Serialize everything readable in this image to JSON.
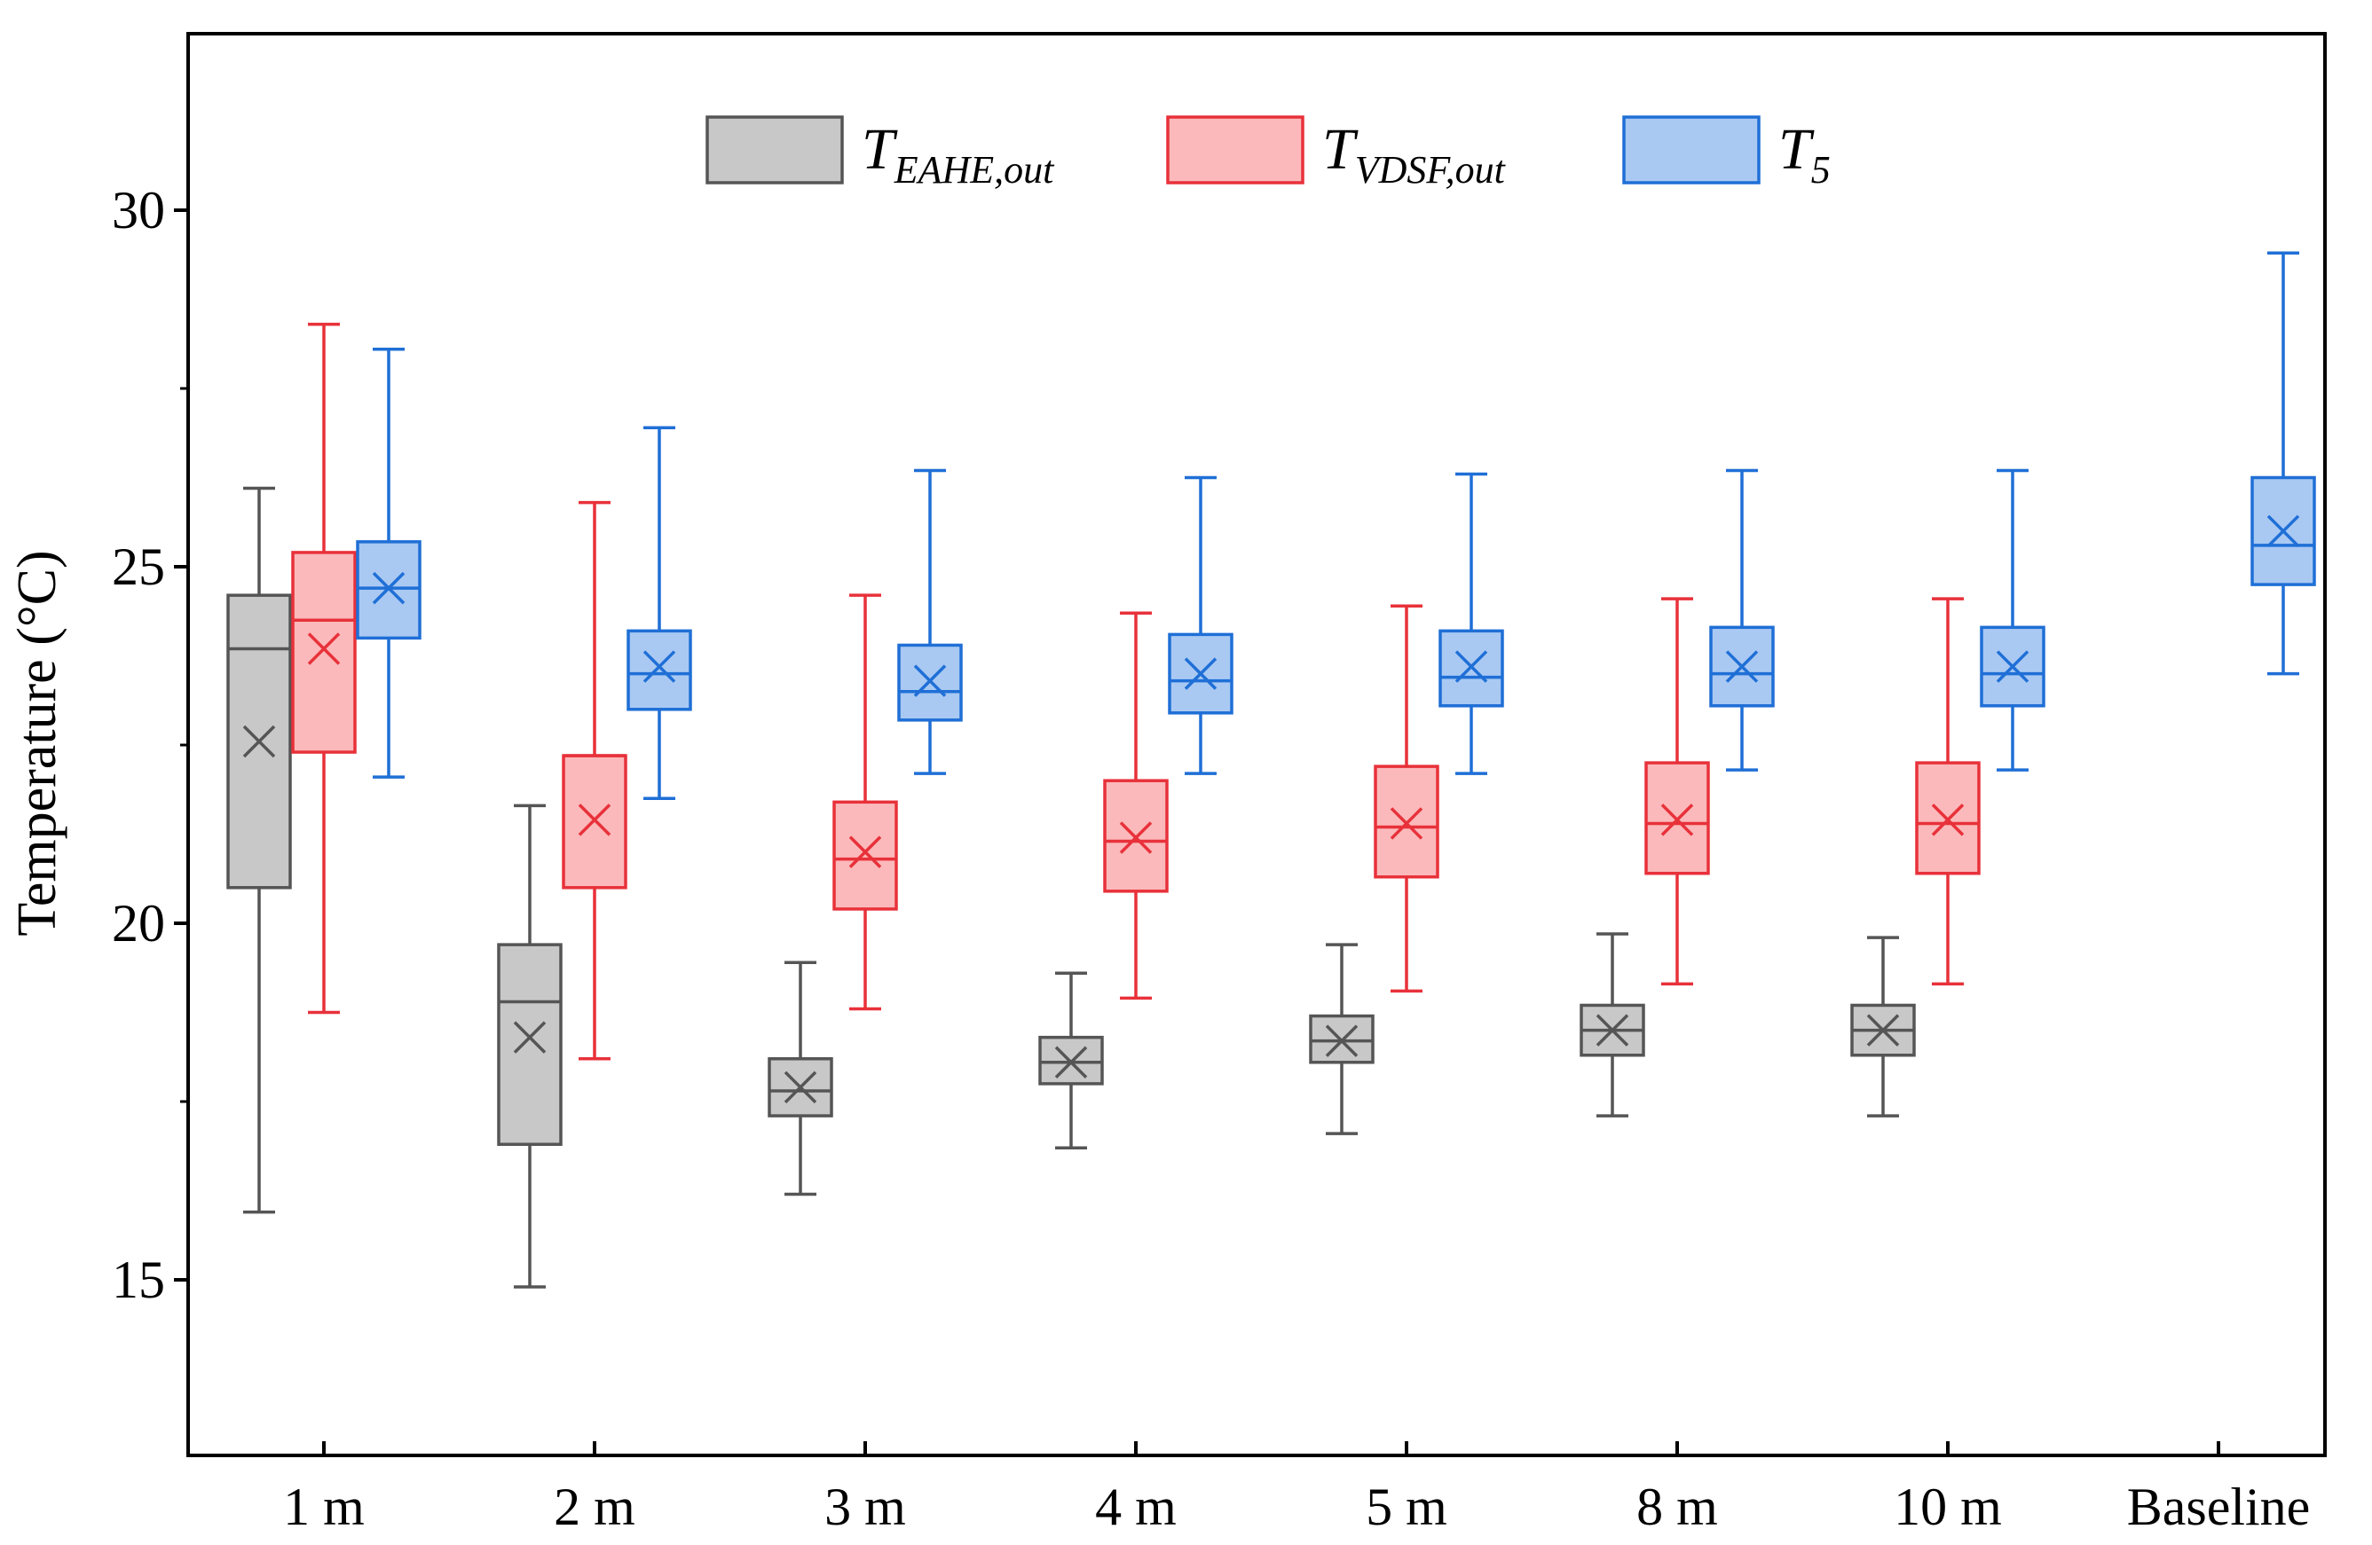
{
  "chart_data": {
    "type": "box",
    "title": "",
    "xlabel": "",
    "ylabel": "Temperature (°C)",
    "ylim": [
      12.5,
      32.5
    ],
    "yticks": [
      15,
      20,
      25,
      30
    ],
    "grid": false,
    "legend_position": "top-center",
    "categories": [
      "1 m",
      "2 m",
      "3 m",
      "4 m",
      "5 m",
      "8 m",
      "10 m",
      "Baseline"
    ],
    "series": [
      {
        "key": "eahe",
        "name_main": "T",
        "name_sub": "EAHE,out",
        "color": "#555555",
        "fill": "#c8c8c8",
        "boxes": [
          {
            "category": "1 m",
            "min": 15.95,
            "q1": 20.5,
            "median": 23.85,
            "mean": 22.55,
            "q3": 24.6,
            "max": 26.1
          },
          {
            "category": "2 m",
            "min": 14.9,
            "q1": 16.9,
            "median": 18.9,
            "mean": 18.4,
            "q3": 19.7,
            "max": 21.65
          },
          {
            "category": "3 m",
            "min": 16.2,
            "q1": 17.3,
            "median": 17.65,
            "mean": 17.7,
            "q3": 18.1,
            "max": 19.45
          },
          {
            "category": "4 m",
            "min": 16.85,
            "q1": 17.75,
            "median": 18.05,
            "mean": 18.05,
            "q3": 18.4,
            "max": 19.3
          },
          {
            "category": "5 m",
            "min": 17.05,
            "q1": 18.05,
            "median": 18.35,
            "mean": 18.35,
            "q3": 18.7,
            "max": 19.7
          },
          {
            "category": "8 m",
            "min": 17.3,
            "q1": 18.15,
            "median": 18.5,
            "mean": 18.5,
            "q3": 18.85,
            "max": 19.85
          },
          {
            "category": "10 m",
            "min": 17.3,
            "q1": 18.15,
            "median": 18.5,
            "mean": 18.5,
            "q3": 18.85,
            "max": 19.8
          }
        ]
      },
      {
        "key": "vdsf",
        "name_main": "T",
        "name_sub": "VDSF,out",
        "color": "#e8313a",
        "fill": "#fbb9bb",
        "boxes": [
          {
            "category": "1 m",
            "min": 18.75,
            "q1": 22.4,
            "median": 24.25,
            "mean": 23.85,
            "q3": 25.2,
            "max": 28.4
          },
          {
            "category": "2 m",
            "min": 18.1,
            "q1": 20.5,
            "median": 22.35,
            "mean": 21.45,
            "q3": 22.35,
            "max": 25.9
          },
          {
            "category": "3 m",
            "min": 18.8,
            "q1": 20.2,
            "median": 20.9,
            "mean": 21.0,
            "q3": 21.7,
            "max": 24.6
          },
          {
            "category": "4 m",
            "min": 18.95,
            "q1": 20.45,
            "median": 21.15,
            "mean": 21.2,
            "q3": 22.0,
            "max": 24.35
          },
          {
            "category": "5 m",
            "min": 19.05,
            "q1": 20.65,
            "median": 21.35,
            "mean": 21.4,
            "q3": 22.2,
            "max": 24.45
          },
          {
            "category": "8 m",
            "min": 19.15,
            "q1": 20.7,
            "median": 21.4,
            "mean": 21.45,
            "q3": 22.25,
            "max": 24.55
          },
          {
            "category": "10 m",
            "min": 19.15,
            "q1": 20.7,
            "median": 21.4,
            "mean": 21.45,
            "q3": 22.25,
            "max": 24.55
          }
        ]
      },
      {
        "key": "t5",
        "name_main": "T",
        "name_sub": "5",
        "color": "#1f6fd6",
        "fill": "#a9c9f3",
        "boxes": [
          {
            "category": "1 m",
            "min": 22.05,
            "q1": 24.0,
            "median": 24.7,
            "mean": 24.7,
            "q3": 25.35,
            "max": 28.05
          },
          {
            "category": "2 m",
            "min": 21.75,
            "q1": 23.0,
            "median": 23.5,
            "mean": 23.6,
            "q3": 24.1,
            "max": 26.95
          },
          {
            "category": "3 m",
            "min": 22.1,
            "q1": 22.85,
            "median": 23.25,
            "mean": 23.4,
            "q3": 23.9,
            "max": 26.35
          },
          {
            "category": "4 m",
            "min": 22.1,
            "q1": 22.95,
            "median": 23.4,
            "mean": 23.5,
            "q3": 24.05,
            "max": 26.25
          },
          {
            "category": "5 m",
            "min": 22.1,
            "q1": 23.05,
            "median": 23.45,
            "mean": 23.6,
            "q3": 24.1,
            "max": 26.3
          },
          {
            "category": "8 m",
            "min": 22.15,
            "q1": 23.05,
            "median": 23.5,
            "mean": 23.6,
            "q3": 24.15,
            "max": 26.35
          },
          {
            "category": "10 m",
            "min": 22.15,
            "q1": 23.05,
            "median": 23.5,
            "mean": 23.6,
            "q3": 24.15,
            "max": 26.35
          },
          {
            "category": "Baseline",
            "min": 23.5,
            "q1": 24.75,
            "median": 25.3,
            "mean": 25.5,
            "q3": 26.25,
            "max": 29.4
          }
        ]
      }
    ]
  }
}
